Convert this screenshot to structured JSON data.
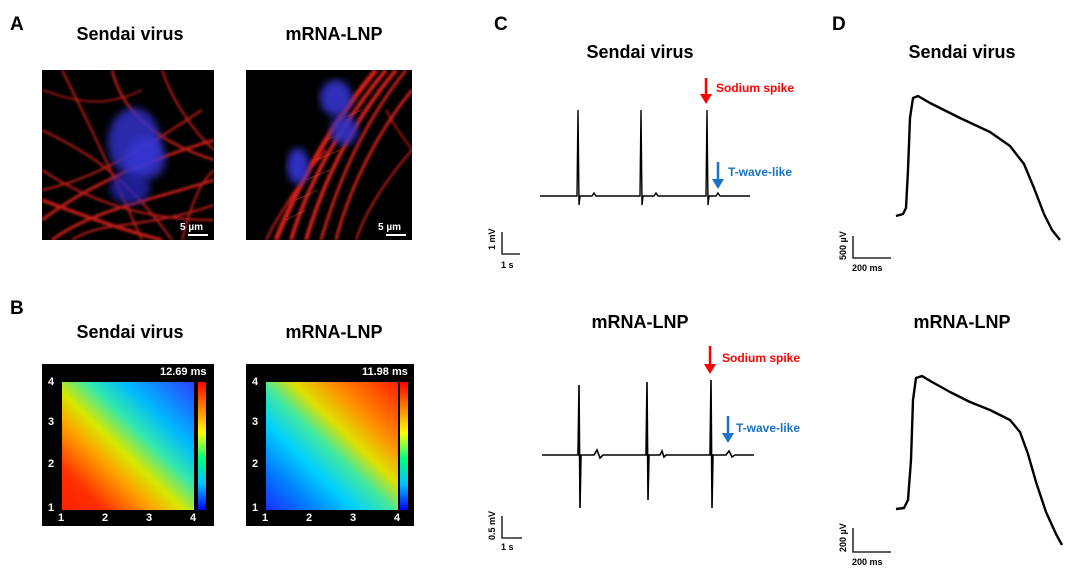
{
  "panels": {
    "a": {
      "letter": "A",
      "left_title": "Sendai virus",
      "right_title": "mRNA-LNP",
      "left_scale": "5 µm",
      "right_scale": "5 µm"
    },
    "b": {
      "letter": "B",
      "left_title": "Sendai virus",
      "right_title": "mRNA-LNP",
      "left_max": "12.69 ms",
      "right_max": "11.98 ms",
      "ticks": [
        "1",
        "2",
        "3",
        "4"
      ]
    },
    "c": {
      "letter": "C",
      "top_title": "Sendai virus",
      "bottom_title": "mRNA-LNP",
      "sodium_label": "Sodium spike",
      "twave_label": "T-wave-like",
      "top_v_scale": "1 mV",
      "top_t_scale": "1 s",
      "bottom_v_scale": "0.5 mV",
      "bottom_t_scale": "1 s"
    },
    "d": {
      "letter": "D",
      "top_title": "Sendai virus",
      "bottom_title": "mRNA-LNP",
      "top_v_scale": "500 µV",
      "top_t_scale": "200 ms",
      "bottom_v_scale": "200 µV",
      "bottom_t_scale": "200 ms"
    }
  },
  "colors": {
    "actin": "#e0201a",
    "nucleus": "#3a3ad8",
    "sodium_arrow": "#ff0000",
    "twave_arrow": "#1a73c8"
  }
}
